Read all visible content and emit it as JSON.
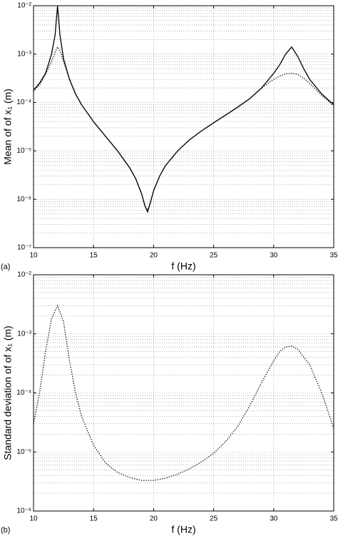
{
  "chart_data": [
    {
      "type": "line",
      "panel_label": "(a)",
      "xlabel": "f (Hz)",
      "ylabel": "Mean of  of x₁ (m)",
      "log_y": true,
      "grid": true,
      "minor_grid": true,
      "xlim": [
        10,
        35
      ],
      "xticks": [
        10,
        15,
        20,
        25,
        30,
        35
      ],
      "ylim": [
        1e-07,
        0.01
      ],
      "yticks": [
        {
          "value": 1e-07,
          "label": "10⁻⁷"
        },
        {
          "value": 1e-06,
          "label": "10⁻⁶"
        },
        {
          "value": 1e-05,
          "label": "10⁻⁵"
        },
        {
          "value": 0.0001,
          "label": "10⁻⁴"
        },
        {
          "value": 0.001,
          "label": "10⁻³"
        },
        {
          "value": 0.01,
          "label": "10⁻²"
        }
      ],
      "x": [
        10,
        10.5,
        11,
        11.5,
        11.8,
        12,
        12.2,
        12.5,
        13,
        13.5,
        14,
        15,
        16,
        17,
        18,
        18.5,
        19,
        19.3,
        19.5,
        19.7,
        20,
        20.5,
        21,
        22,
        23,
        24,
        25,
        26,
        27,
        28,
        29,
        30,
        30.5,
        31,
        31.5,
        32,
        32.5,
        33,
        34,
        35
      ],
      "series": [
        {
          "color": "#000000",
          "linestyle": "solid",
          "values": [
            0.00018,
            0.00025,
            0.0004,
            0.001,
            0.0025,
            0.01,
            0.0025,
            0.0008,
            0.0003,
            0.00015,
            9e-05,
            4e-05,
            2e-05,
            1e-05,
            4.5e-06,
            2.7e-06,
            1.3e-06,
            7e-07,
            5.5e-07,
            8e-07,
            1.5e-06,
            3e-06,
            5e-06,
            1e-05,
            1.7e-05,
            2.6e-05,
            3.8e-05,
            5.5e-05,
            8e-05,
            0.00012,
            0.0002,
            0.0004,
            0.0006,
            0.001,
            0.0014,
            0.0009,
            0.0005,
            0.0003,
            0.00015,
            9e-05
          ]
        },
        {
          "color": "#000000",
          "linestyle": "dotted",
          "values": [
            0.00017,
            0.00023,
            0.00038,
            0.0007,
            0.0011,
            0.0014,
            0.0012,
            0.0007,
            0.0003,
            0.00015,
            9e-05,
            4e-05,
            2e-05,
            1e-05,
            4.5e-06,
            2.7e-06,
            1.3e-06,
            7e-07,
            6e-07,
            8e-07,
            1.5e-06,
            3e-06,
            5e-06,
            1e-05,
            1.7e-05,
            2.6e-05,
            3.8e-05,
            5.5e-05,
            8e-05,
            0.00012,
            0.0002,
            0.0003,
            0.00035,
            0.00039,
            0.0004,
            0.00038,
            0.00032,
            0.00025,
            0.00014,
            8.5e-05
          ]
        }
      ]
    },
    {
      "type": "line",
      "panel_label": "(b)",
      "xlabel": "f (Hz)",
      "ylabel": "Standard deviation of  of x₁ (m)",
      "log_y": true,
      "grid": true,
      "minor_grid": true,
      "xlim": [
        10,
        35
      ],
      "xticks": [
        10,
        15,
        20,
        25,
        30,
        35
      ],
      "ylim": [
        1e-06,
        0.01
      ],
      "yticks": [
        {
          "value": 1e-06,
          "label": "10⁻⁶"
        },
        {
          "value": 1e-05,
          "label": "10⁻⁵"
        },
        {
          "value": 0.0001,
          "label": "10⁻⁴"
        },
        {
          "value": 0.001,
          "label": "10⁻³"
        },
        {
          "value": 0.01,
          "label": "10⁻²"
        }
      ],
      "x": [
        10,
        10.5,
        11,
        11.5,
        12,
        12.5,
        13,
        13.5,
        14,
        15,
        16,
        17,
        18,
        19,
        20,
        21,
        22,
        23,
        24,
        25,
        26,
        27,
        28,
        29,
        30,
        30.5,
        31,
        31.5,
        32,
        33,
        34,
        35
      ],
      "series": [
        {
          "color": "#000000",
          "linestyle": "dotted",
          "values": [
            3e-05,
            0.0001,
            0.0005,
            0.0018,
            0.003,
            0.0016,
            0.00035,
            0.0001,
            4e-05,
            1.3e-05,
            6.5e-06,
            4.5e-06,
            3.7e-06,
            3.3e-06,
            3.3e-06,
            3.6e-06,
            4.2e-06,
            5.2e-06,
            6.8e-06,
            9.5e-06,
            1.5e-05,
            2.7e-05,
            6e-05,
            0.00015,
            0.00035,
            0.0005,
            0.0006,
            0.00062,
            0.00055,
            0.0003,
            0.0001,
            2.5e-05
          ]
        }
      ]
    }
  ]
}
